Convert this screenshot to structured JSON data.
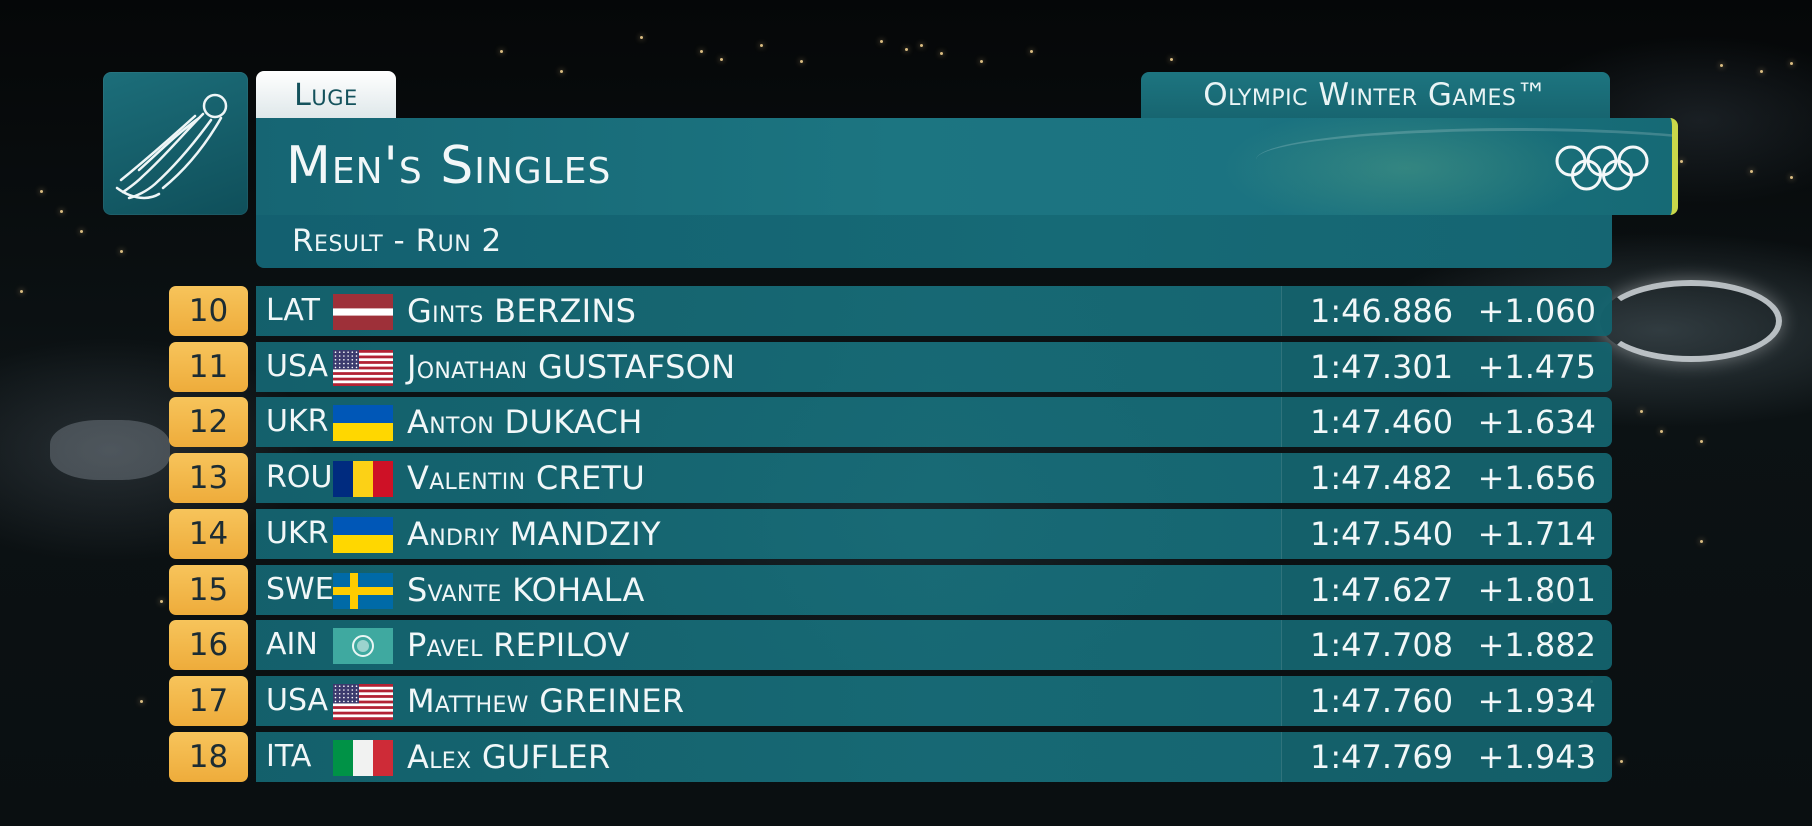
{
  "header": {
    "sport": "Luge",
    "games": "Olympic Winter Games™",
    "event_title": "Men's Singles",
    "result_label": "Result - Run 2",
    "sport_icon": "luge-slider-icon",
    "games_emblem": "olympic-rings-icon"
  },
  "colors": {
    "panel_teal": "#176a76",
    "rank_gold": "#f2b849",
    "accent_lime": "#c9d84a"
  },
  "results": [
    {
      "rank": "10",
      "noc": "LAT",
      "first": "Gints",
      "last": "BERZINS",
      "time": "1:46.886",
      "behind": "+1.060"
    },
    {
      "rank": "11",
      "noc": "USA",
      "first": "Jonathan",
      "last": "GUSTAFSON",
      "time": "1:47.301",
      "behind": "+1.475"
    },
    {
      "rank": "12",
      "noc": "UKR",
      "first": "Anton",
      "last": "DUKACH",
      "time": "1:47.460",
      "behind": "+1.634"
    },
    {
      "rank": "13",
      "noc": "ROU",
      "first": "Valentin",
      "last": "CRETU",
      "time": "1:47.482",
      "behind": "+1.656"
    },
    {
      "rank": "14",
      "noc": "UKR",
      "first": "Andriy",
      "last": "MANDZIY",
      "time": "1:47.540",
      "behind": "+1.714"
    },
    {
      "rank": "15",
      "noc": "SWE",
      "first": "Svante",
      "last": "KOHALA",
      "time": "1:47.627",
      "behind": "+1.801"
    },
    {
      "rank": "16",
      "noc": "AIN",
      "first": "Pavel",
      "last": "REPILOV",
      "time": "1:47.708",
      "behind": "+1.882"
    },
    {
      "rank": "17",
      "noc": "USA",
      "first": "Matthew",
      "last": "GREINER",
      "time": "1:47.760",
      "behind": "+1.934"
    },
    {
      "rank": "18",
      "noc": "ITA",
      "first": "Alex",
      "last": "GUFLER",
      "time": "1:47.769",
      "behind": "+1.943"
    }
  ]
}
